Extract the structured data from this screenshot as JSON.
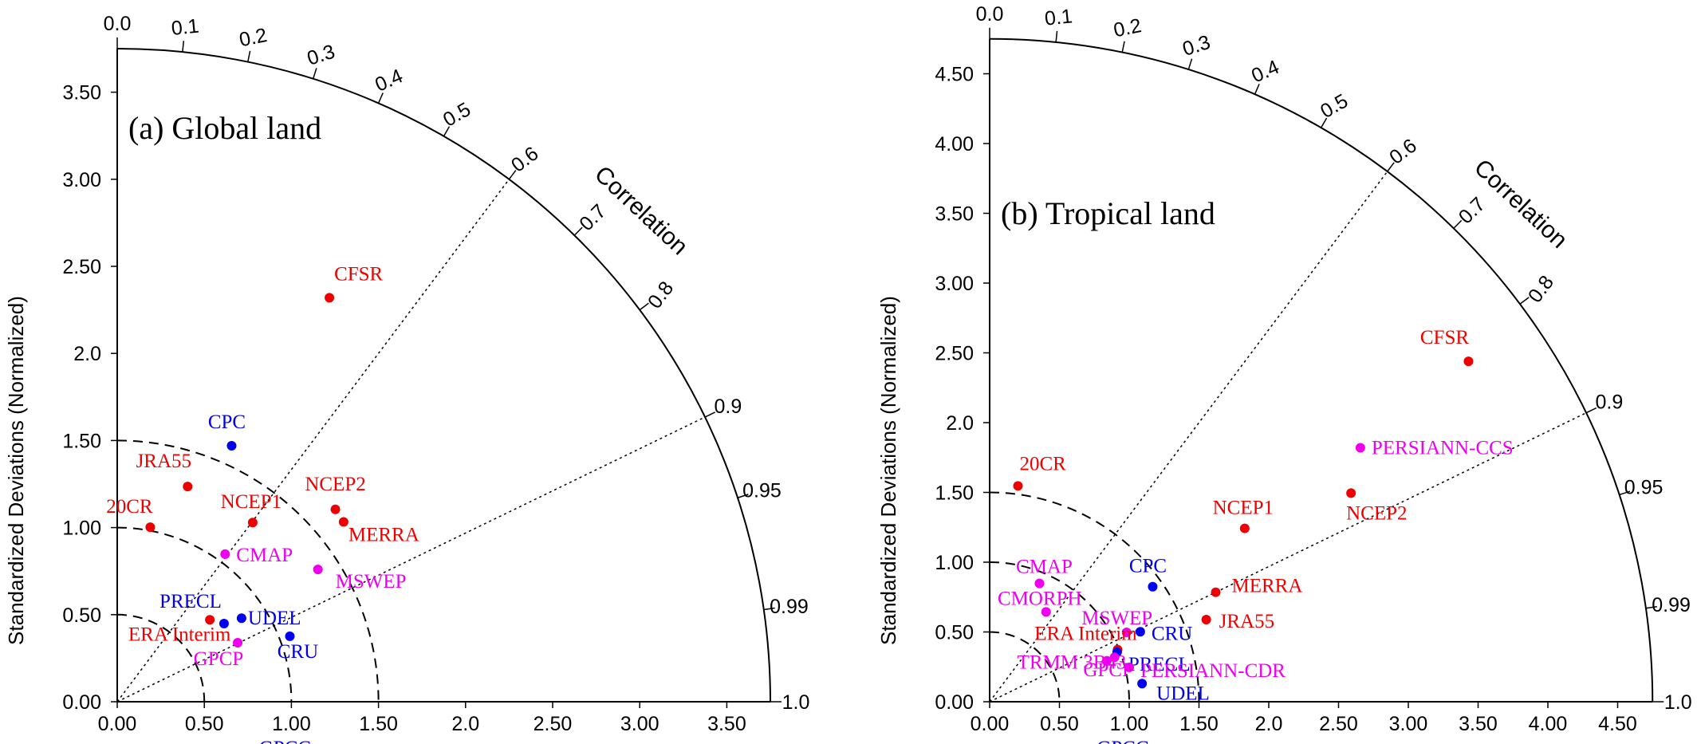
{
  "chart_data": [
    {
      "type": "taylor-diagram",
      "title": "(a) Global land",
      "ylabel": "Standardized Deviations (Normalized)",
      "corr_label": "Correlation",
      "sd_max": 3.75,
      "x_ticks": [
        "0.00",
        "0.50",
        "1.00",
        "1.50",
        "2.0",
        "2.50",
        "3.00",
        "3.50"
      ],
      "y_ticks": [
        "0.00",
        "0.50",
        "1.00",
        "1.50",
        "2.0",
        "2.50",
        "3.00",
        "3.50"
      ],
      "corr_ticks": [
        "0.0",
        "0.1",
        "0.2",
        "0.3",
        "0.4",
        "0.5",
        "0.6",
        "0.7",
        "0.8",
        "0.9",
        "0.95",
        "0.99",
        "1.0"
      ],
      "reference": {
        "name": "GPCC",
        "sd": 1.0,
        "color": "#0000dd"
      },
      "centered_rms_circles": [
        0.5,
        1.0,
        1.5
      ],
      "corr_rays": [
        0.6,
        0.9
      ],
      "points": [
        {
          "name": "CFSR",
          "sd": 2.62,
          "corr": 0.465,
          "color": "#ee0000"
        },
        {
          "name": "CPC",
          "sd": 1.61,
          "corr": 0.408,
          "color": "#0000ee"
        },
        {
          "name": "JRA55",
          "sd": 1.3,
          "corr": 0.311,
          "color": "#ee0000"
        },
        {
          "name": "20CR",
          "sd": 1.02,
          "corr": 0.186,
          "color": "#ee0000"
        },
        {
          "name": "NCEP2",
          "sd": 1.67,
          "corr": 0.75,
          "color": "#ee0000"
        },
        {
          "name": "NCEP1",
          "sd": 1.29,
          "corr": 0.603,
          "color": "#ee0000"
        },
        {
          "name": "MERRA",
          "sd": 1.66,
          "corr": 0.783,
          "color": "#ee0000"
        },
        {
          "name": "CMAP",
          "sd": 1.05,
          "corr": 0.59,
          "color": "#ee00ee"
        },
        {
          "name": "MSWEP",
          "sd": 1.38,
          "corr": 0.835,
          "color": "#ee00ee"
        },
        {
          "name": "PRECL",
          "sd": 0.76,
          "corr": 0.807,
          "color": "#0000ee"
        },
        {
          "name": "UDEL",
          "sd": 0.86,
          "corr": 0.83,
          "color": "#0000ee"
        },
        {
          "name": "ERA Interim",
          "sd": 0.71,
          "corr": 0.749,
          "color": "#ee0000"
        },
        {
          "name": "CRU",
          "sd": 1.06,
          "corr": 0.935,
          "color": "#0000ee"
        },
        {
          "name": "GPCP",
          "sd": 0.77,
          "corr": 0.898,
          "color": "#ee00ee"
        }
      ]
    },
    {
      "type": "taylor-diagram",
      "title": "(b) Tropical land",
      "ylabel": "Standardized Deviations (Normalized)",
      "corr_label": "Correlation",
      "sd_max": 4.75,
      "x_ticks": [
        "0.00",
        "0.50",
        "1.00",
        "1.50",
        "2.0",
        "2.50",
        "3.00",
        "3.50",
        "4.00",
        "4.50"
      ],
      "y_ticks": [
        "0.00",
        "0.50",
        "1.00",
        "1.50",
        "2.0",
        "2.50",
        "3.00",
        "3.50",
        "4.00",
        "4.50"
      ],
      "corr_ticks": [
        "0.0",
        "0.1",
        "0.2",
        "0.3",
        "0.4",
        "0.5",
        "0.6",
        "0.7",
        "0.8",
        "0.9",
        "0.95",
        "0.99",
        "1.0"
      ],
      "reference": {
        "name": "GPCC",
        "sd": 1.0,
        "color": "#0000dd"
      },
      "centered_rms_circles": [
        0.5,
        1.0,
        1.5
      ],
      "corr_rays": [
        0.6,
        0.9
      ],
      "points": [
        {
          "name": "CFSR",
          "sd": 4.21,
          "corr": 0.815,
          "color": "#ee0000"
        },
        {
          "name": "PERSIANN-CCS",
          "sd": 3.22,
          "corr": 0.825,
          "color": "#ee00ee"
        },
        {
          "name": "20CR",
          "sd": 1.56,
          "corr": 0.13,
          "color": "#ee0000"
        },
        {
          "name": "NCEP1",
          "sd": 2.21,
          "corr": 0.827,
          "color": "#ee0000"
        },
        {
          "name": "NCEP2",
          "sd": 2.99,
          "corr": 0.866,
          "color": "#ee0000"
        },
        {
          "name": "MERRA",
          "sd": 1.8,
          "corr": 0.9,
          "color": "#ee0000"
        },
        {
          "name": "JRA55",
          "sd": 1.66,
          "corr": 0.935,
          "color": "#ee0000"
        },
        {
          "name": "CPC",
          "sd": 1.43,
          "corr": 0.817,
          "color": "#0000ee"
        },
        {
          "name": "CMAP",
          "sd": 0.92,
          "corr": 0.388,
          "color": "#ee00ee"
        },
        {
          "name": "CMORPH",
          "sd": 0.76,
          "corr": 0.532,
          "color": "#ee00ee"
        },
        {
          "name": "MSWEP",
          "sd": 1.1,
          "corr": 0.892,
          "color": "#ee00ee"
        },
        {
          "name": "CRU",
          "sd": 1.19,
          "corr": 0.907,
          "color": "#0000ee"
        },
        {
          "name": "ERA Interim",
          "sd": 0.99,
          "corr": 0.926,
          "color": "#ee0000"
        },
        {
          "name": "PRECL",
          "sd": 0.98,
          "corr": 0.932,
          "color": "#0000ee"
        },
        {
          "name": "TRMM 3B43",
          "sd": 0.89,
          "corr": 0.944,
          "color": "#ee00ee"
        },
        {
          "name": "GPCP",
          "sd": 0.95,
          "corr": 0.942,
          "color": "#ee00ee"
        },
        {
          "name": "PERSIANN-CDR",
          "sd": 1.03,
          "corr": 0.971,
          "color": "#ee00ee"
        },
        {
          "name": "UDEL",
          "sd": 1.1,
          "corr": 0.993,
          "color": "#0000ee"
        }
      ]
    }
  ]
}
